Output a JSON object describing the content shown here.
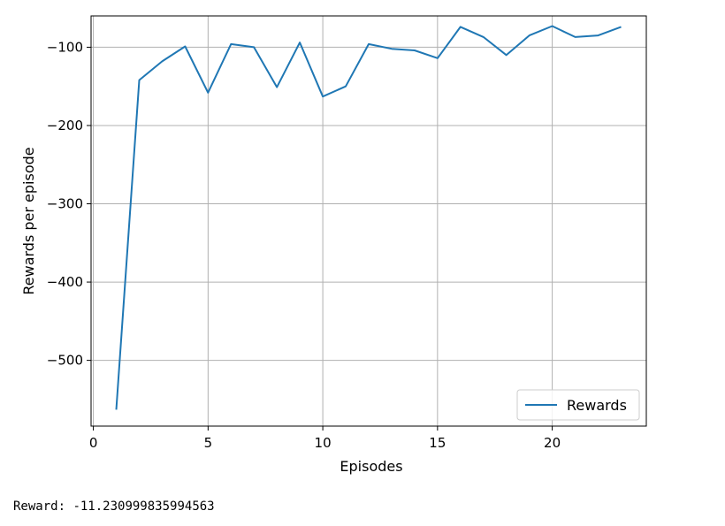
{
  "chart_data": {
    "type": "line",
    "xlabel": "Episodes",
    "ylabel": "Rewards per episode",
    "xlim": [
      -0.1,
      24.1
    ],
    "ylim": [
      -584,
      -60
    ],
    "xticks": [
      0,
      5,
      10,
      15,
      20
    ],
    "yticks": [
      -100,
      -200,
      -300,
      -400,
      -500
    ],
    "xtick_labels": [
      "0",
      "5",
      "10",
      "15",
      "20"
    ],
    "ytick_labels": [
      "−100",
      "−200",
      "−300",
      "−400",
      "−500"
    ],
    "grid": true,
    "legend_position": "lower-right",
    "series": [
      {
        "name": "Rewards",
        "color": "#1f77b4",
        "x": [
          1,
          2,
          3,
          4,
          5,
          6,
          7,
          8,
          9,
          10,
          11,
          12,
          13,
          14,
          15,
          16,
          17,
          18,
          19,
          20,
          21,
          22,
          23
        ],
        "y": [
          -563,
          -142,
          -118,
          -99,
          -158,
          -96,
          -100,
          -151,
          -94,
          -163,
          -150,
          -96,
          -102,
          -104,
          -114,
          -74,
          -87,
          -110,
          -85,
          -73,
          -87,
          -85,
          -74
        ]
      }
    ]
  },
  "output": {
    "label": "Reward:",
    "value": "-11.230999835994563"
  }
}
